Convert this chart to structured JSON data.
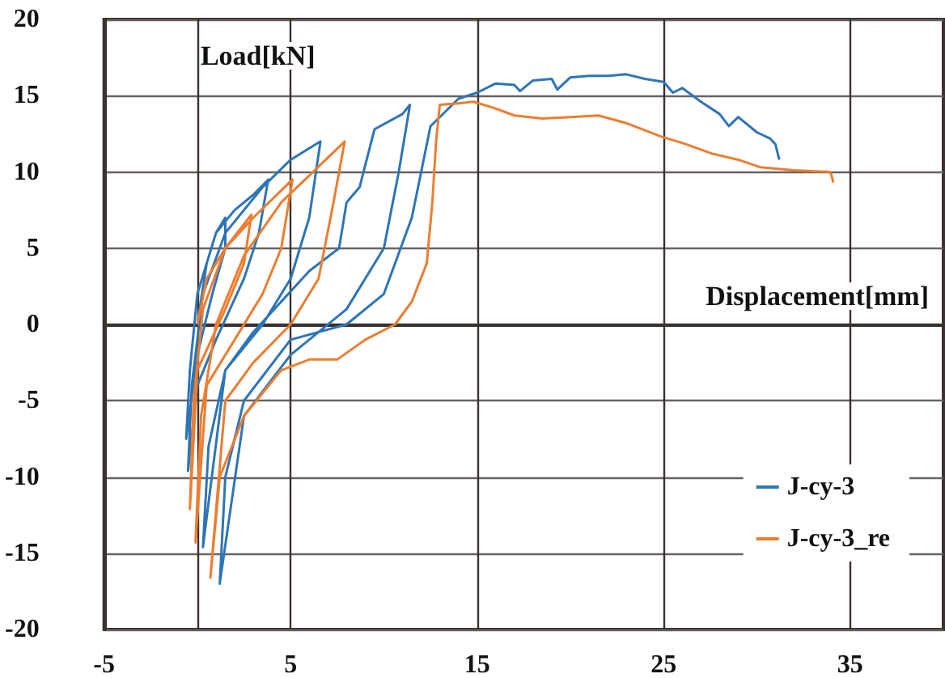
{
  "chart_data": {
    "type": "line",
    "xlabel": "Displacement[mm]",
    "ylabel": "Load[kN]",
    "xlim": [
      -5,
      40
    ],
    "xticks": [
      -5,
      {
        "value": 0,
        "label": null
      },
      5,
      15,
      25,
      35
    ],
    "ylim": [
      -20,
      20
    ],
    "yticks": [
      -20,
      -15,
      -10,
      -5,
      0,
      5,
      10,
      15,
      20
    ],
    "grid": true,
    "legend": "bottom right",
    "marker": "none",
    "line_style": "solid",
    "series": [
      {
        "name": "J-cy-3",
        "color": "#2e75b6",
        "x": [
          0,
          0.5,
          1,
          1.5,
          1.5,
          0.8,
          0,
          -0.6,
          -0.4,
          0,
          1,
          2,
          3,
          3.8,
          3.3,
          2.5,
          1,
          0,
          -0.5,
          -0.3,
          0.3,
          1.5,
          3.5,
          5,
          6.6,
          6,
          5,
          3.5,
          1.5,
          0.3,
          0.6,
          1.5,
          3,
          4.5,
          6,
          7.6,
          8,
          8.7,
          9.5,
          11,
          11.4,
          10.8,
          10,
          8,
          5,
          2.5,
          1.2,
          1.5,
          2.5,
          5,
          8,
          10,
          11.5,
          12.5,
          14,
          15,
          16,
          17,
          17.3,
          18,
          19,
          19.3,
          20,
          21,
          22,
          23,
          24,
          25,
          25.5,
          26,
          27,
          28,
          28.5,
          29,
          30,
          30.7,
          31,
          31.2
        ],
        "values": [
          0,
          4,
          6,
          7,
          5,
          2,
          -2,
          -7.5,
          -3,
          2,
          6,
          7.5,
          8.5,
          9.5,
          6,
          3,
          -1,
          -4,
          -9.6,
          -4,
          2,
          6,
          9,
          10.8,
          12,
          7,
          3,
          0,
          -3,
          -14.6,
          -8,
          -3,
          -0.5,
          1.5,
          3.5,
          5,
          8,
          9,
          12.8,
          13.8,
          14.4,
          10,
          5,
          1,
          -2,
          -6,
          -17,
          -10,
          -5,
          -1,
          0,
          2,
          7,
          13,
          14.8,
          15.2,
          15.8,
          15.7,
          15.3,
          16,
          16.1,
          15.4,
          16.2,
          16.3,
          16.3,
          16.4,
          16.1,
          15.9,
          15.2,
          15.5,
          14.6,
          13.8,
          13,
          13.6,
          12.6,
          12.2,
          11.8,
          10.8
        ]
      },
      {
        "name": "J-cy-3_re",
        "color": "#ed7d31",
        "x": [
          0,
          0.5,
          1.5,
          2.9,
          2.5,
          1.5,
          0,
          -0.4,
          -0.2,
          0.3,
          1.5,
          3,
          5.1,
          4.5,
          3.5,
          2,
          0.5,
          -0.1,
          0.2,
          1,
          2.5,
          4.5,
          7.9,
          7.3,
          6.5,
          5,
          3,
          1.5,
          0.7,
          1.2,
          2.5,
          4.5,
          6,
          7.5,
          9,
          10.6,
          11.5,
          12.3,
          12.6,
          12.8,
          13,
          14,
          14.8,
          15.9,
          17,
          18.5,
          20,
          21.5,
          23,
          24.9,
          26,
          27.6,
          29,
          30.2,
          32,
          33.9,
          34,
          34.1
        ],
        "values": [
          0,
          3,
          5,
          7.2,
          4,
          1,
          -3,
          -12.1,
          -5,
          1,
          5,
          7,
          9.5,
          5,
          2,
          -1,
          -4,
          -14.3,
          -6,
          0,
          4.5,
          8,
          12,
          8,
          3,
          0,
          -2.5,
          -5,
          -16.6,
          -10,
          -6,
          -3,
          -2.3,
          -2.3,
          -1,
          0,
          1.5,
          4,
          8,
          12,
          14.4,
          14.5,
          14.6,
          14.2,
          13.7,
          13.5,
          13.6,
          13.7,
          13.2,
          12.3,
          11.9,
          11.2,
          10.8,
          10.3,
          10.1,
          10,
          9.8,
          9.3
        ]
      }
    ]
  }
}
